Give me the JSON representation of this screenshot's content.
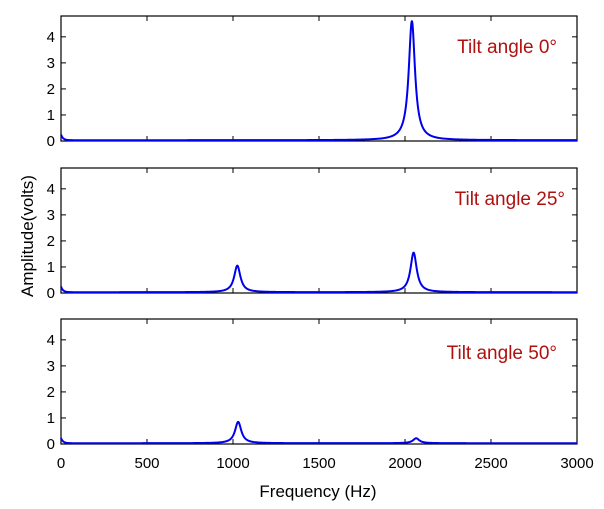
{
  "chart_data": {
    "type": "line",
    "xlabel": "Frequency (Hz)",
    "ylabel": "Amplitude(volts)",
    "xlim": [
      0,
      3000
    ],
    "ylim": [
      0,
      4.8
    ],
    "x_ticks": [
      "0",
      "500",
      "1000",
      "1500",
      "2000",
      "2500",
      "3000"
    ],
    "y_ticks": [
      "0",
      "1",
      "2",
      "3",
      "4"
    ],
    "grid": false,
    "line_color": "#0000ee",
    "annotation_color": "#b01010",
    "panels": [
      {
        "annotation": "Tilt angle 0°",
        "baseline": 0.03,
        "low_freq_rise": 0.22,
        "peaks": [
          {
            "frequency": 2040,
            "amplitude": 4.6
          }
        ]
      },
      {
        "annotation": "Tilt angle 25°",
        "baseline": 0.03,
        "low_freq_rise": 0.22,
        "peaks": [
          {
            "frequency": 1025,
            "amplitude": 1.05
          },
          {
            "frequency": 2050,
            "amplitude": 1.55
          }
        ]
      },
      {
        "annotation": "Tilt angle 50°",
        "baseline": 0.03,
        "low_freq_rise": 0.2,
        "peaks": [
          {
            "frequency": 1030,
            "amplitude": 0.85
          },
          {
            "frequency": 2065,
            "amplitude": 0.22
          }
        ]
      }
    ]
  }
}
